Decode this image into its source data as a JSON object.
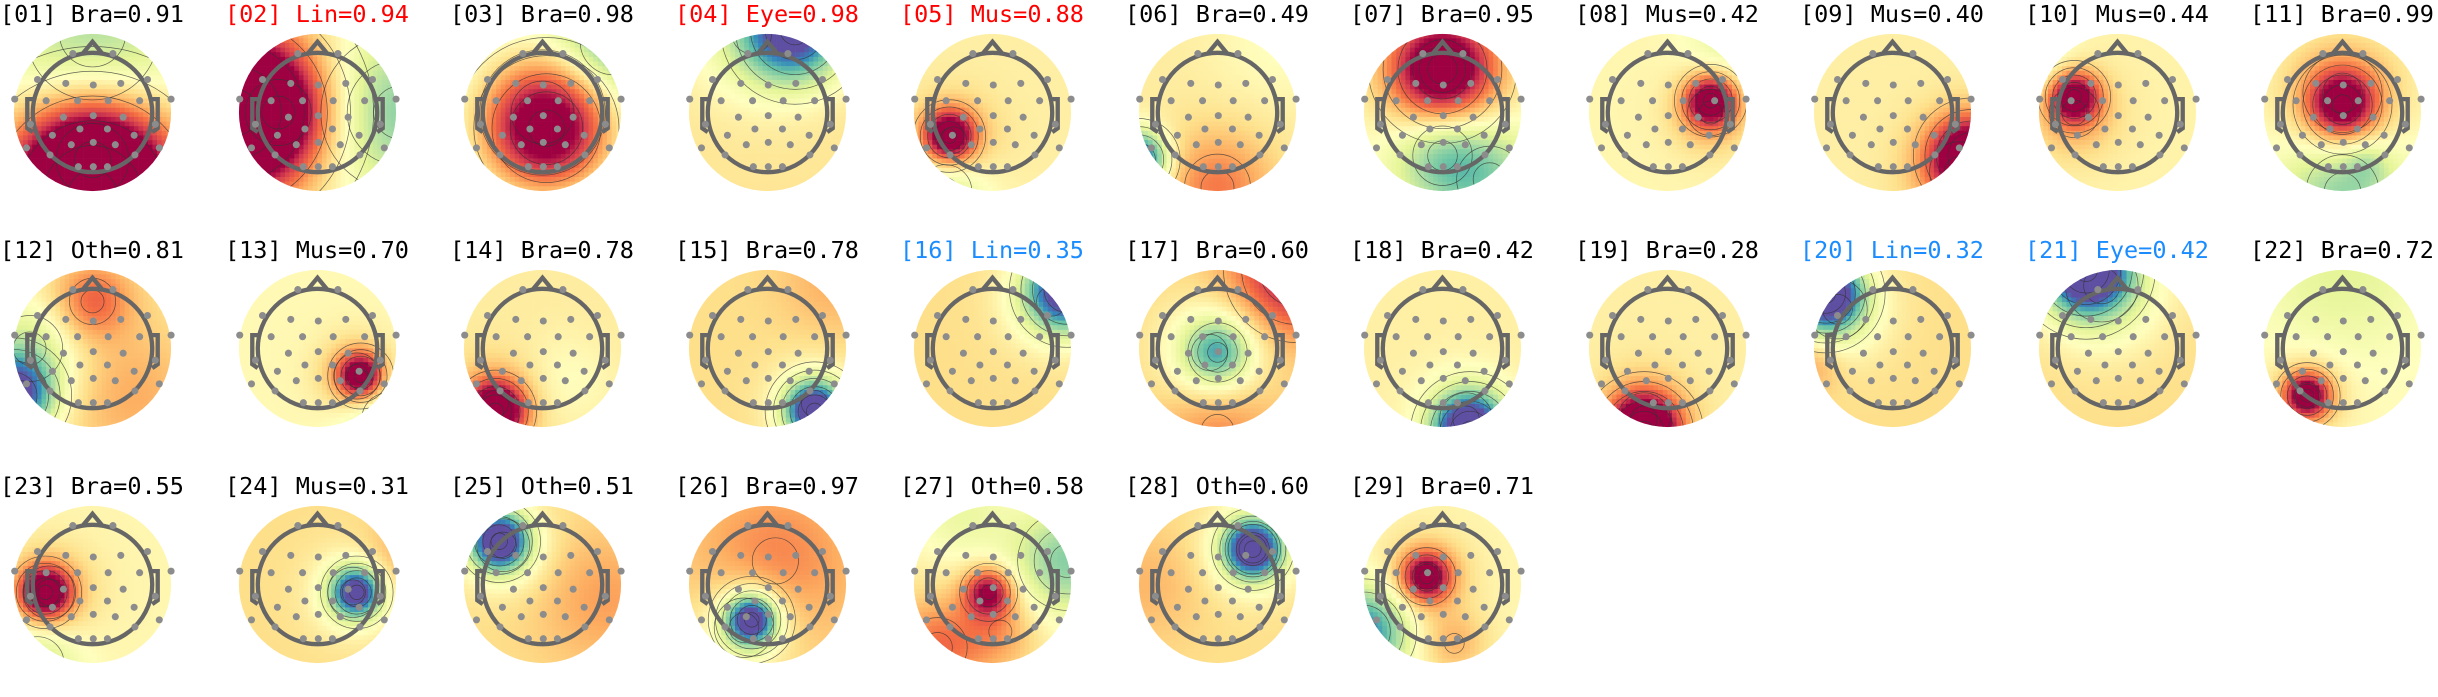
{
  "figure": {
    "title_colors": {
      "normal": "#000000",
      "flagged": "#ff0000",
      "uncertain": "#1a8cff"
    },
    "colormap": [
      "#5e4fa2",
      "#3288bd",
      "#66c2a5",
      "#abdda4",
      "#e6f598",
      "#ffffbf",
      "#fee08b",
      "#fdae61",
      "#f46d43",
      "#d53e4f",
      "#9e0142"
    ],
    "components": [
      {
        "index": "01",
        "label": "Bra",
        "prob": "0.91",
        "title": "[01] Bra=0.91",
        "status": "normal",
        "base": 0.55,
        "blobs": [
          [
            0,
            1.05,
            0.75,
            0.95
          ],
          [
            0,
            -1.0,
            1.0,
            -0.25
          ],
          [
            0,
            0.6,
            0.55,
            0.25
          ]
        ]
      },
      {
        "index": "02",
        "label": "Lin",
        "prob": "0.94",
        "title": "[02] Lin=0.94",
        "status": "flagged",
        "base": 0.55,
        "blobs": [
          [
            -1.05,
            0,
            0.7,
            0.95
          ],
          [
            1.05,
            0,
            0.8,
            -0.3
          ],
          [
            -0.5,
            0,
            0.5,
            0.2
          ]
        ]
      },
      {
        "index": "03",
        "label": "Bra",
        "prob": "0.98",
        "title": "[03] Bra=0.98",
        "status": "normal",
        "base": 0.35,
        "blobs": [
          [
            0.05,
            0.2,
            0.55,
            0.6
          ],
          [
            0,
            0,
            0.95,
            0.2
          ],
          [
            0.9,
            -0.9,
            0.5,
            -0.25
          ]
        ]
      },
      {
        "index": "04",
        "label": "Eye",
        "prob": "0.98",
        "title": "[04] Eye=0.98",
        "status": "flagged",
        "base": 0.58,
        "blobs": [
          [
            0.35,
            -1.05,
            0.45,
            -0.6
          ],
          [
            -0.2,
            -1.0,
            0.6,
            -0.15
          ]
        ]
      },
      {
        "index": "05",
        "label": "Mus",
        "prob": "0.88",
        "title": "[05] Mus=0.88",
        "status": "flagged",
        "base": 0.55,
        "blobs": [
          [
            -0.55,
            0.3,
            0.22,
            0.55
          ],
          [
            -0.5,
            0.35,
            0.4,
            0.15
          ],
          [
            -0.6,
            1.0,
            0.4,
            -0.2
          ]
        ]
      },
      {
        "index": "06",
        "label": "Bra",
        "prob": "0.49",
        "title": "[06] Bra=0.49",
        "status": "normal",
        "base": 0.56,
        "blobs": [
          [
            0,
            0.95,
            0.5,
            0.22
          ],
          [
            -1.0,
            0.6,
            0.25,
            -0.6
          ],
          [
            0.8,
            -0.9,
            0.6,
            -0.06
          ]
        ]
      },
      {
        "index": "07",
        "label": "Bra",
        "prob": "0.95",
        "title": "[07] Bra=0.95",
        "status": "normal",
        "base": 0.5,
        "blobs": [
          [
            0,
            -0.55,
            0.45,
            0.55
          ],
          [
            0,
            -0.55,
            0.7,
            0.15
          ],
          [
            0,
            0.55,
            0.45,
            -0.25
          ],
          [
            0.6,
            0.85,
            0.5,
            -0.2
          ]
        ]
      },
      {
        "index": "08",
        "label": "Mus",
        "prob": "0.42",
        "title": "[08] Mus=0.42",
        "status": "normal",
        "base": 0.53,
        "blobs": [
          [
            0.55,
            -0.15,
            0.22,
            0.5
          ],
          [
            0.55,
            0,
            0.35,
            0.18
          ],
          [
            0.8,
            -0.9,
            0.4,
            -0.12
          ]
        ]
      },
      {
        "index": "09",
        "label": "Mus",
        "prob": "0.40",
        "title": "[09] Mus=0.40",
        "status": "normal",
        "base": 0.55,
        "blobs": [
          [
            1.0,
            0.55,
            0.35,
            0.55
          ],
          [
            0.85,
            0.75,
            0.45,
            0.2
          ]
        ]
      },
      {
        "index": "10",
        "label": "Mus",
        "prob": "0.44",
        "title": "[10] Mus=0.44",
        "status": "normal",
        "base": 0.54,
        "blobs": [
          [
            -0.55,
            -0.2,
            0.22,
            0.5
          ],
          [
            -0.55,
            0,
            0.38,
            0.18
          ],
          [
            -1.0,
            -0.6,
            0.35,
            -0.12
          ]
        ]
      },
      {
        "index": "11",
        "label": "Bra",
        "prob": "0.99",
        "title": "[11] Bra=0.99",
        "status": "normal",
        "base": 0.5,
        "blobs": [
          [
            0,
            -0.1,
            0.3,
            0.5
          ],
          [
            0,
            -0.25,
            0.6,
            0.2
          ],
          [
            0,
            1.0,
            0.55,
            -0.25
          ],
          [
            0.3,
            0.65,
            0.18,
            -0.1
          ]
        ]
      },
      {
        "index": "12",
        "label": "Oth",
        "prob": "0.81",
        "title": "[12] Oth=0.81",
        "status": "normal",
        "base": 0.58,
        "blobs": [
          [
            0.0,
            -0.6,
            0.35,
            0.25
          ],
          [
            -1.0,
            0.6,
            0.35,
            -0.6
          ],
          [
            -0.8,
            0,
            0.5,
            -0.2
          ],
          [
            0.5,
            0.6,
            0.6,
            0.12
          ]
        ]
      },
      {
        "index": "13",
        "label": "Mus",
        "prob": "0.70",
        "title": "[13] Mus=0.70",
        "status": "normal",
        "base": 0.52,
        "blobs": [
          [
            0.55,
            0.35,
            0.2,
            0.5
          ],
          [
            0.5,
            0.35,
            0.35,
            0.18
          ],
          [
            0.9,
            0.9,
            0.4,
            -0.2
          ]
        ]
      },
      {
        "index": "14",
        "label": "Bra",
        "prob": "0.78",
        "title": "[14] Bra=0.78",
        "status": "normal",
        "base": 0.56,
        "blobs": [
          [
            -0.6,
            0.8,
            0.25,
            0.6
          ],
          [
            -0.6,
            0.7,
            0.4,
            0.15
          ],
          [
            0.3,
            0.4,
            0.4,
            -0.06
          ]
        ]
      },
      {
        "index": "15",
        "label": "Bra",
        "prob": "0.78",
        "title": "[15] Bra=0.78",
        "status": "normal",
        "base": 0.6,
        "blobs": [
          [
            0.6,
            0.8,
            0.25,
            -0.65
          ],
          [
            0.6,
            0.7,
            0.4,
            -0.15
          ],
          [
            0.9,
            -0.9,
            0.5,
            0.1
          ]
        ]
      },
      {
        "index": "16",
        "label": "Lin",
        "prob": "0.35",
        "title": "[16] Lin=0.35",
        "status": "uncertain",
        "base": 0.6,
        "blobs": [
          [
            0.95,
            -0.75,
            0.35,
            -0.6
          ],
          [
            0.75,
            -0.6,
            0.45,
            -0.15
          ]
        ]
      },
      {
        "index": "17",
        "label": "Bra",
        "prob": "0.60",
        "title": "[17] Bra=0.60",
        "status": "normal",
        "base": 0.62,
        "blobs": [
          [
            0,
            0.05,
            0.3,
            -0.35
          ],
          [
            -0.1,
            0.05,
            0.55,
            -0.15
          ],
          [
            1.0,
            -1.0,
            0.55,
            0.4
          ],
          [
            0,
            1.05,
            0.5,
            0.15
          ]
        ]
      },
      {
        "index": "18",
        "label": "Bra",
        "prob": "0.42",
        "title": "[18] Bra=0.42",
        "status": "normal",
        "base": 0.55,
        "blobs": [
          [
            0.35,
            1.05,
            0.3,
            -0.65
          ],
          [
            0.3,
            0.9,
            0.4,
            -0.18
          ]
        ]
      },
      {
        "index": "19",
        "label": "Bra",
        "prob": "0.28",
        "title": "[19] Bra=0.28",
        "status": "normal",
        "base": 0.55,
        "blobs": [
          [
            -0.3,
            1.05,
            0.3,
            0.65
          ],
          [
            -0.3,
            0.9,
            0.4,
            0.2
          ]
        ]
      },
      {
        "index": "20",
        "label": "Lin",
        "prob": "0.32",
        "title": "[20] Lin=0.32",
        "status": "uncertain",
        "base": 0.6,
        "blobs": [
          [
            -0.85,
            -0.7,
            0.3,
            -0.7
          ],
          [
            -0.7,
            -0.5,
            0.45,
            -0.2
          ],
          [
            -1.0,
            0.2,
            0.25,
            0.12
          ]
        ]
      },
      {
        "index": "21",
        "label": "Eye",
        "prob": "0.42",
        "title": "[21] Eye=0.42",
        "status": "uncertain",
        "base": 0.6,
        "blobs": [
          [
            -0.4,
            -1.0,
            0.35,
            -0.7
          ],
          [
            -0.2,
            -0.8,
            0.55,
            -0.25
          ]
        ]
      },
      {
        "index": "22",
        "label": "Bra",
        "prob": "0.72",
        "title": "[22] Bra=0.72",
        "status": "normal",
        "base": 0.52,
        "blobs": [
          [
            -0.45,
            0.6,
            0.2,
            0.5
          ],
          [
            -0.45,
            0.6,
            0.35,
            0.15
          ],
          [
            0,
            -1.0,
            0.8,
            -0.12
          ]
        ]
      },
      {
        "index": "23",
        "label": "Bra",
        "prob": "0.55",
        "title": "[23] Bra=0.55",
        "status": "normal",
        "base": 0.53,
        "blobs": [
          [
            -0.6,
            0.1,
            0.22,
            0.55
          ],
          [
            -0.55,
            0.1,
            0.4,
            0.18
          ],
          [
            -0.7,
            1.0,
            0.4,
            -0.18
          ]
        ]
      },
      {
        "index": "24",
        "label": "Mus",
        "prob": "0.31",
        "title": "[24] Mus=0.31",
        "status": "normal",
        "base": 0.6,
        "blobs": [
          [
            0.5,
            0.1,
            0.22,
            -0.55
          ],
          [
            0.45,
            0.1,
            0.38,
            -0.18
          ],
          [
            1.0,
            -0.3,
            0.35,
            0.1
          ]
        ]
      },
      {
        "index": "25",
        "label": "Oth",
        "prob": "0.51",
        "title": "[25] Oth=0.51",
        "status": "normal",
        "base": 0.6,
        "blobs": [
          [
            -0.55,
            -0.55,
            0.25,
            -0.6
          ],
          [
            -0.5,
            -0.5,
            0.4,
            -0.2
          ],
          [
            0.8,
            0.2,
            0.6,
            0.12
          ]
        ]
      },
      {
        "index": "26",
        "label": "Bra",
        "prob": "0.97",
        "title": "[26] Bra=0.97",
        "status": "normal",
        "base": 0.62,
        "blobs": [
          [
            -0.2,
            0.45,
            0.22,
            -0.65
          ],
          [
            -0.3,
            0.55,
            0.45,
            -0.2
          ],
          [
            0.1,
            -0.3,
            0.7,
            0.15
          ]
        ]
      },
      {
        "index": "27",
        "label": "Oth",
        "prob": "0.58",
        "title": "[27] Oth=0.58",
        "status": "normal",
        "base": 0.55,
        "blobs": [
          [
            -0.05,
            0.1,
            0.22,
            0.45
          ],
          [
            -0.7,
            0.8,
            0.45,
            0.25
          ],
          [
            0.95,
            -0.3,
            0.5,
            -0.3
          ],
          [
            -0.4,
            -0.9,
            0.45,
            -0.12
          ],
          [
            0.1,
            0.6,
            0.35,
            0.15
          ]
        ]
      },
      {
        "index": "28",
        "label": "Oth",
        "prob": "0.60",
        "title": "[28] Oth=0.60",
        "status": "normal",
        "base": 0.6,
        "blobs": [
          [
            0.45,
            -0.45,
            0.25,
            -0.6
          ],
          [
            0.45,
            -0.45,
            0.42,
            -0.2
          ],
          [
            -0.9,
            0,
            0.5,
            0.08
          ]
        ]
      },
      {
        "index": "29",
        "label": "Bra",
        "prob": "0.71",
        "title": "[29] Bra=0.71",
        "status": "normal",
        "base": 0.53,
        "blobs": [
          [
            -0.2,
            -0.1,
            0.22,
            0.45
          ],
          [
            -0.2,
            -0.1,
            0.38,
            0.15
          ],
          [
            -1.0,
            0.6,
            0.4,
            -0.45
          ],
          [
            0.15,
            0.75,
            0.3,
            0.15
          ]
        ]
      }
    ]
  }
}
